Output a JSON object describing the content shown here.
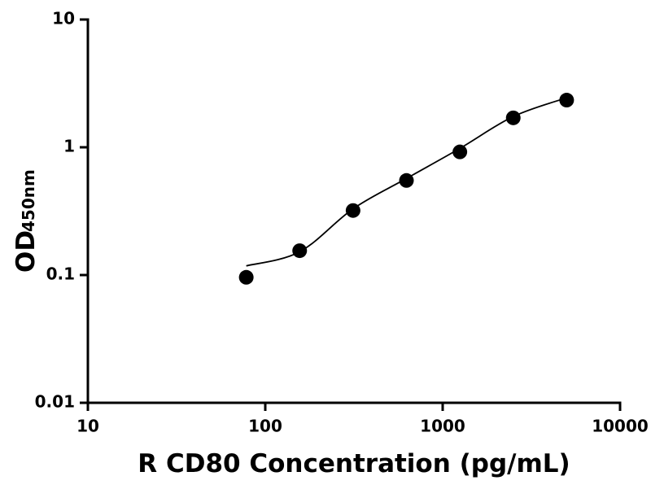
{
  "chart_data": {
    "type": "scatter",
    "x_label": "R CD80 Concentration (pg/mL)",
    "y_label": "OD",
    "y_label_sub": "450nm",
    "x": [
      78.125,
      156.25,
      312.5,
      625,
      1250,
      2500,
      5000
    ],
    "values": [
      0.096,
      0.155,
      0.32,
      0.55,
      0.92,
      1.7,
      2.34
    ],
    "color": "#000000",
    "fit": {
      "x": [
        78.125,
        156.25,
        312.5,
        625,
        1250,
        2500,
        5000
      ],
      "values": [
        0.118,
        0.152,
        0.33,
        0.57,
        0.98,
        1.74,
        2.44
      ],
      "color": "#000000"
    },
    "xscale": "log",
    "yscale": "log",
    "xlim": [
      10,
      10000
    ],
    "ylim": [
      0.01,
      10
    ],
    "xticks": [
      10,
      100,
      1000,
      10000
    ],
    "yticks": [
      0.01,
      0.1,
      1,
      10
    ]
  }
}
